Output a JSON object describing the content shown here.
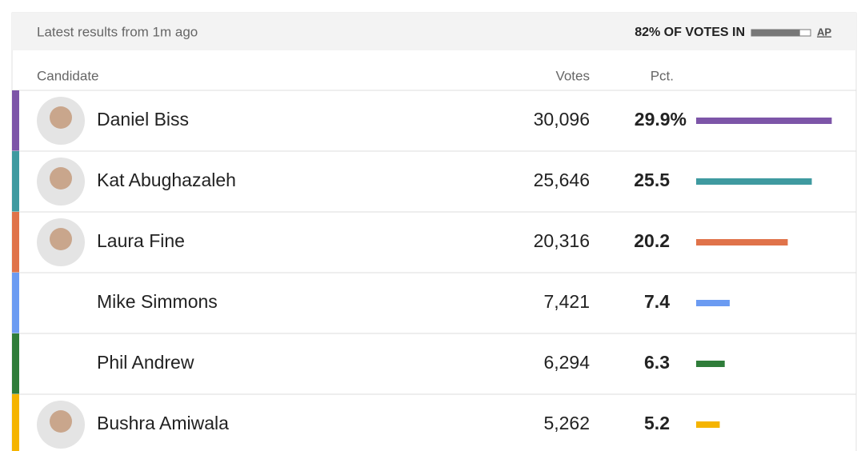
{
  "header": {
    "title": "Latest results from 1m ago",
    "reporting": {
      "value": 82,
      "label": "82% OF VOTES IN"
    },
    "source": "AP"
  },
  "table": {
    "columns": [
      "Candidate",
      "Votes",
      "Pct."
    ],
    "rows": [
      {
        "name": "Daniel Biss",
        "votes": "30,096",
        "pct": 29.9,
        "pct_label": "29.9%",
        "color": "#7d55a8",
        "photo": true
      },
      {
        "name": "Kat Abughazaleh",
        "votes": "25,646",
        "pct": 25.5,
        "color": "#3f9aa0",
        "photo": true
      },
      {
        "name": "Laura Fine",
        "votes": "20,316",
        "pct": 20.2,
        "color": "#e0734a",
        "photo": true
      },
      {
        "name": "Mike Simmons",
        "votes": "7,421",
        "pct": 7.4,
        "color": "#6b9bf2",
        "photo": false
      },
      {
        "name": "Phil Andrew",
        "votes": "6,294",
        "pct": 6.3,
        "color": "#2f7d3a",
        "photo": false
      },
      {
        "name": "Bushra Amiwala",
        "votes": "5,262",
        "pct": 5.2,
        "color": "#f5b400",
        "photo": true
      }
    ]
  }
}
